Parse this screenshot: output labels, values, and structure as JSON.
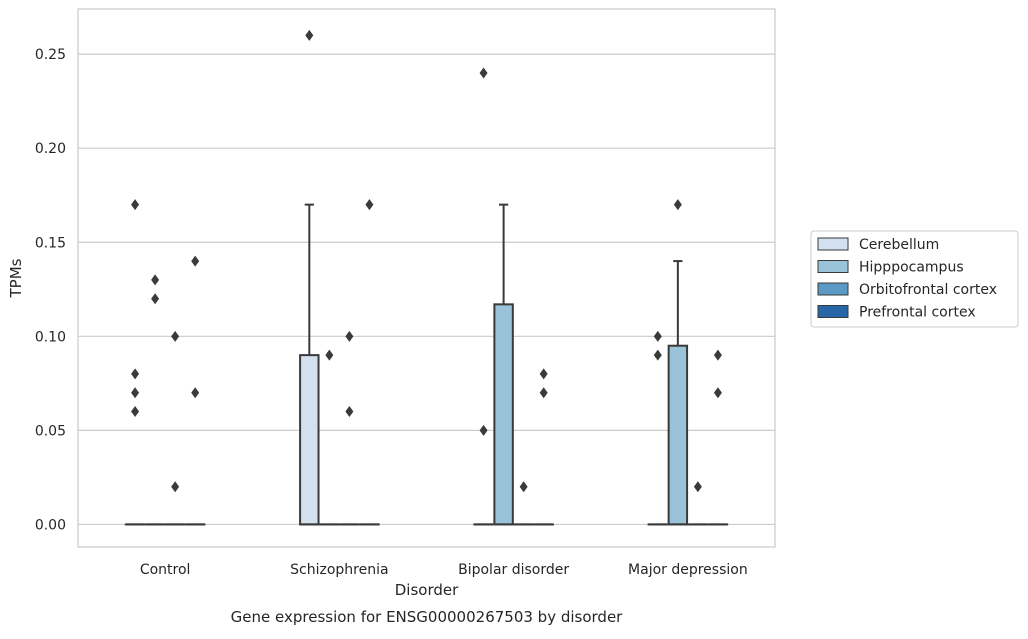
{
  "chart_data": {
    "type": "box",
    "caption": "Gene expression for ENSG00000267503 by disorder",
    "xlabel": "Disorder",
    "ylabel": "TPMs",
    "ylim": [
      -0.012,
      0.274
    ],
    "yticks": [
      0.0,
      0.05,
      0.1,
      0.15,
      0.2,
      0.25
    ],
    "ytick_labels": [
      "0.00",
      "0.05",
      "0.10",
      "0.15",
      "0.20",
      "0.25"
    ],
    "grid": "horizontal",
    "legend_position": "outside-right",
    "categories": [
      "Control",
      "Schizophrenia",
      "Bipolar disorder",
      "Major depression"
    ],
    "series": [
      {
        "name": "Cerebellum",
        "color": "#d3e0ef",
        "boxes": [
          {
            "category": "Control",
            "q1": 0,
            "median": 0,
            "q3": 0,
            "whislo": 0,
            "whishi": 0,
            "fliers": [
              0.06,
              0.07,
              0.08,
              0.17
            ]
          },
          {
            "category": "Schizophrenia",
            "q1": 0,
            "median": 0,
            "q3": 0.09,
            "whislo": 0,
            "whishi": 0.17,
            "fliers": [
              0.26
            ]
          },
          {
            "category": "Bipolar disorder",
            "q1": 0,
            "median": 0,
            "q3": 0,
            "whislo": 0,
            "whishi": 0,
            "fliers": [
              0.05,
              0.24
            ]
          },
          {
            "category": "Major depression",
            "q1": 0,
            "median": 0,
            "q3": 0,
            "whislo": 0,
            "whishi": 0,
            "fliers": [
              0.09,
              0.1
            ]
          }
        ]
      },
      {
        "name": "Hipppocampus",
        "color": "#9ac2d8",
        "boxes": [
          {
            "category": "Control",
            "q1": 0,
            "median": 0,
            "q3": 0,
            "whislo": 0,
            "whishi": 0,
            "fliers": [
              0.12,
              0.13
            ]
          },
          {
            "category": "Schizophrenia",
            "q1": 0,
            "median": 0,
            "q3": 0,
            "whislo": 0,
            "whishi": 0,
            "fliers": [
              0.09
            ]
          },
          {
            "category": "Bipolar disorder",
            "q1": 0,
            "median": 0,
            "q3": 0.117,
            "whislo": 0,
            "whishi": 0.17,
            "fliers": []
          },
          {
            "category": "Major depression",
            "q1": 0,
            "median": 0,
            "q3": 0.095,
            "whislo": 0,
            "whishi": 0.14,
            "fliers": [
              0.17
            ]
          }
        ]
      },
      {
        "name": "Orbitofrontal cortex",
        "color": "#5b9ac4",
        "boxes": [
          {
            "category": "Control",
            "q1": 0,
            "median": 0,
            "q3": 0,
            "whislo": 0,
            "whishi": 0,
            "fliers": [
              0.02,
              0.1
            ]
          },
          {
            "category": "Schizophrenia",
            "q1": 0,
            "median": 0,
            "q3": 0,
            "whislo": 0,
            "whishi": 0,
            "fliers": [
              0.06,
              0.1
            ]
          },
          {
            "category": "Bipolar disorder",
            "q1": 0,
            "median": 0,
            "q3": 0,
            "whislo": 0,
            "whishi": 0,
            "fliers": [
              0.02
            ]
          },
          {
            "category": "Major depression",
            "q1": 0,
            "median": 0,
            "q3": 0,
            "whislo": 0,
            "whishi": 0,
            "fliers": [
              0.02
            ]
          }
        ]
      },
      {
        "name": "Prefrontal cortex",
        "color": "#2866a8",
        "boxes": [
          {
            "category": "Control",
            "q1": 0,
            "median": 0,
            "q3": 0,
            "whislo": 0,
            "whishi": 0,
            "fliers": [
              0.07,
              0.14
            ]
          },
          {
            "category": "Schizophrenia",
            "q1": 0,
            "median": 0,
            "q3": 0,
            "whislo": 0,
            "whishi": 0,
            "fliers": [
              0.17
            ]
          },
          {
            "category": "Bipolar disorder",
            "q1": 0,
            "median": 0,
            "q3": 0,
            "whislo": 0,
            "whishi": 0,
            "fliers": [
              0.07,
              0.08
            ]
          },
          {
            "category": "Major depression",
            "q1": 0,
            "median": 0,
            "q3": 0,
            "whislo": 0,
            "whishi": 0,
            "fliers": [
              0.07,
              0.09
            ]
          }
        ]
      }
    ]
  }
}
